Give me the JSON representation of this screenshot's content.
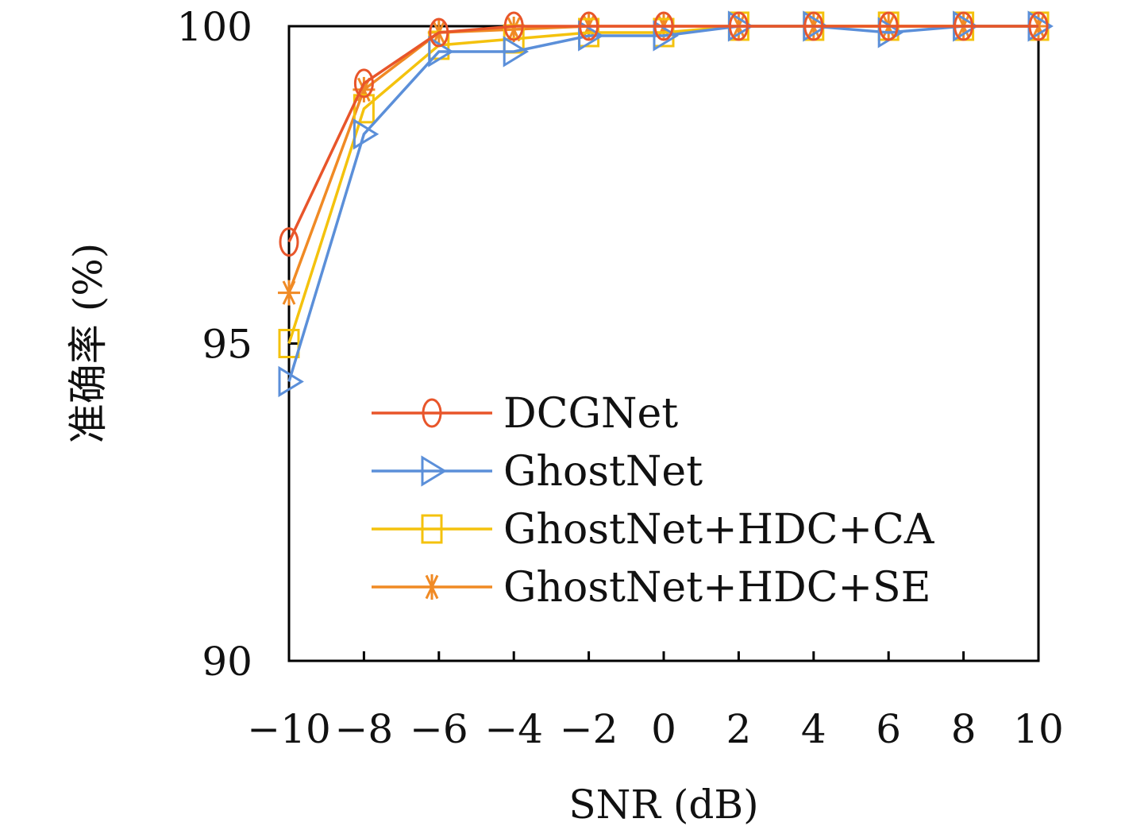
{
  "chart_data": {
    "type": "line",
    "xlabel": "SNR (dB)",
    "ylabel": "准确率 (%)",
    "x": [
      -10,
      -8,
      -6,
      -4,
      -2,
      0,
      2,
      4,
      6,
      8,
      10
    ],
    "x_tick_labels": [
      "−10",
      "−8",
      "−6",
      "−4",
      "−2",
      "0",
      "2",
      "4",
      "6",
      "8",
      "10"
    ],
    "y_ticks": [
      90,
      95,
      100
    ],
    "y_tick_labels": [
      "90",
      "95",
      "100"
    ],
    "xlim": [
      -10,
      10
    ],
    "ylim": [
      90,
      100
    ],
    "grid": false,
    "legend_position": "lower-right",
    "series": [
      {
        "name": "DCGNet",
        "color": "#e8552a",
        "marker": "circle",
        "values": [
          96.6,
          99.1,
          99.9,
          100.0,
          100.0,
          100.0,
          100.0,
          100.0,
          100.0,
          100.0,
          100.0
        ]
      },
      {
        "name": "GhostNet",
        "color": "#5b8fd9",
        "marker": "triangle-right",
        "values": [
          94.4,
          98.3,
          99.6,
          99.6,
          99.85,
          99.85,
          100.0,
          100.0,
          99.9,
          100.0,
          100.0
        ]
      },
      {
        "name": "GhostNet+HDC+CA",
        "color": "#f4c20d",
        "marker": "square",
        "values": [
          95.0,
          98.7,
          99.7,
          99.8,
          99.9,
          99.9,
          100.0,
          100.0,
          100.0,
          100.0,
          100.0
        ]
      },
      {
        "name": "GhostNet+HDC+SE",
        "color": "#f08a24",
        "marker": "star",
        "values": [
          95.8,
          99.0,
          99.9,
          99.95,
          100.0,
          100.0,
          100.0,
          100.0,
          100.0,
          100.0,
          100.0
        ]
      }
    ]
  }
}
